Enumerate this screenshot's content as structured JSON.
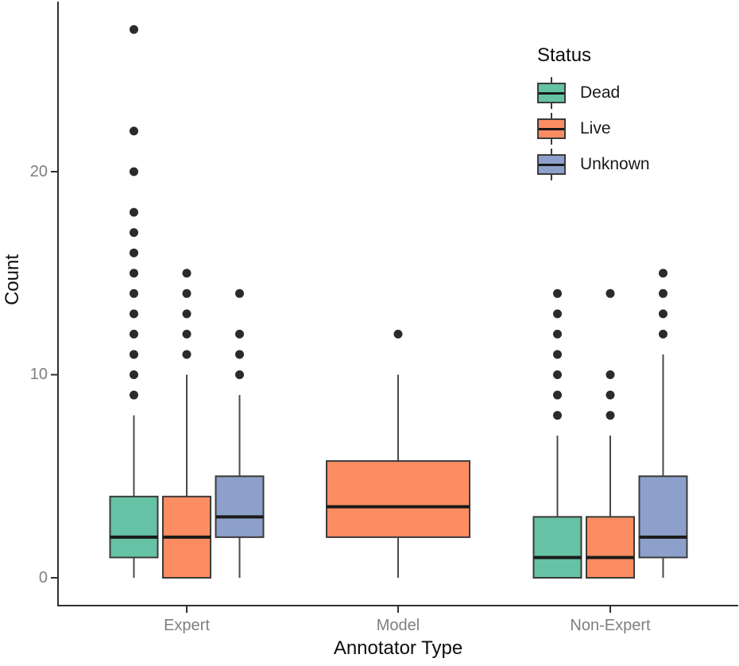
{
  "chart_data": {
    "type": "boxplot",
    "title": "",
    "xlabel": "Annotator Type",
    "ylabel": "Count",
    "categories": [
      "Expert",
      "Model",
      "Non-Expert"
    ],
    "y_ticks": [
      0,
      10,
      20
    ],
    "ylim": [
      -1.4,
      28.5
    ],
    "grid": "off",
    "legend": {
      "title": "Status",
      "position": "top-right-inside",
      "entries": [
        {
          "label": "Dead",
          "color": "#66C2A5"
        },
        {
          "label": "Live",
          "color": "#FC8D62"
        },
        {
          "label": "Unknown",
          "color": "#8DA0CB"
        }
      ]
    },
    "series": [
      {
        "category": "Expert",
        "boxes": [
          {
            "status": "Dead",
            "min": 0,
            "q1": 1,
            "median": 2,
            "q3": 4,
            "max": 8,
            "outliers": [
              9,
              10,
              11,
              12,
              13,
              14,
              15,
              16,
              17,
              18,
              20,
              22,
              27
            ]
          },
          {
            "status": "Live",
            "min": 0,
            "q1": 0,
            "median": 2,
            "q3": 4,
            "max": 10,
            "outliers": [
              11,
              12,
              13,
              14,
              15
            ]
          },
          {
            "status": "Unknown",
            "min": 0,
            "q1": 2,
            "median": 3,
            "q3": 5,
            "max": 9,
            "outliers": [
              10,
              11,
              12,
              14
            ]
          }
        ]
      },
      {
        "category": "Model",
        "boxes": [
          {
            "status": "Live",
            "min": 0,
            "q1": 2,
            "median": 3.5,
            "q3": 5.75,
            "max": 10,
            "outliers": [
              12
            ]
          }
        ]
      },
      {
        "category": "Non-Expert",
        "boxes": [
          {
            "status": "Dead",
            "min": 0,
            "q1": 0,
            "median": 1,
            "q3": 3,
            "max": 7,
            "outliers": [
              8,
              9,
              10,
              11,
              12,
              13,
              14
            ]
          },
          {
            "status": "Live",
            "min": 0,
            "q1": 0,
            "median": 1,
            "q3": 3,
            "max": 7,
            "outliers": [
              8,
              9,
              10,
              14
            ]
          },
          {
            "status": "Unknown",
            "min": 0,
            "q1": 1,
            "median": 2,
            "q3": 5,
            "max": 11,
            "outliers": [
              12,
              13,
              14,
              15
            ]
          }
        ]
      }
    ],
    "style": {
      "background": "#ffffff",
      "box_border": "#3b3b3b",
      "median_color": "#1a1a1a",
      "whisker_color": "#4a4a4a",
      "outlier_color": "#2b2b2b",
      "axis_color": "#2f2f2f",
      "tick_label_color": "#7f7f7f",
      "axis_title_color": "#0d0d0d"
    }
  }
}
